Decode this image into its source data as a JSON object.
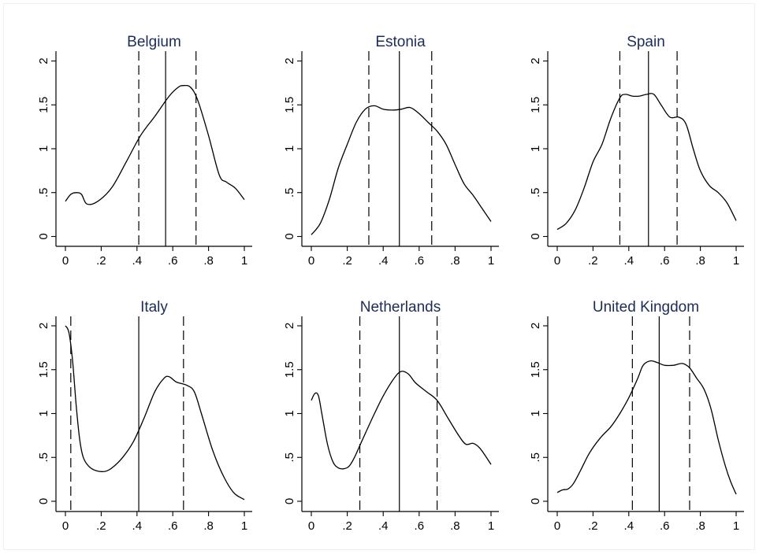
{
  "chart_data": [
    {
      "type": "line",
      "title": "Belgium",
      "xlim": [
        0,
        1
      ],
      "ylim": [
        0,
        2
      ],
      "x_ticks": [
        "0",
        ".2",
        ".4",
        ".6",
        ".8",
        "1"
      ],
      "y_ticks": [
        "0",
        ".5",
        "1",
        "1.5",
        "2"
      ],
      "grid": false,
      "series": [
        {
          "x": [
            0,
            0.03,
            0.06,
            0.09,
            0.12,
            0.18,
            0.26,
            0.34,
            0.42,
            0.5,
            0.58,
            0.63,
            0.66,
            0.7,
            0.74,
            0.8,
            0.86,
            0.9,
            0.95,
            1.0
          ],
          "y": [
            0.4,
            0.48,
            0.5,
            0.48,
            0.37,
            0.4,
            0.56,
            0.85,
            1.15,
            1.37,
            1.6,
            1.7,
            1.72,
            1.7,
            1.55,
            1.15,
            0.7,
            0.62,
            0.55,
            0.42
          ]
        }
      ],
      "vlines": [
        {
          "x": 0.41,
          "style": "dashed"
        },
        {
          "x": 0.56,
          "style": "solid"
        },
        {
          "x": 0.73,
          "style": "dashed"
        }
      ]
    },
    {
      "type": "line",
      "title": "Estonia",
      "xlim": [
        0,
        1
      ],
      "ylim": [
        0,
        2
      ],
      "x_ticks": [
        "0",
        ".2",
        ".4",
        ".6",
        ".8",
        "1"
      ],
      "y_ticks": [
        "0",
        ".5",
        "1",
        "1.5",
        "2"
      ],
      "grid": false,
      "series": [
        {
          "x": [
            0,
            0.05,
            0.1,
            0.15,
            0.2,
            0.25,
            0.3,
            0.35,
            0.4,
            0.45,
            0.5,
            0.55,
            0.6,
            0.65,
            0.7,
            0.75,
            0.8,
            0.85,
            0.9,
            0.95,
            1.0
          ],
          "y": [
            0.02,
            0.15,
            0.42,
            0.78,
            1.05,
            1.3,
            1.45,
            1.49,
            1.45,
            1.44,
            1.45,
            1.47,
            1.4,
            1.3,
            1.2,
            1.05,
            0.82,
            0.6,
            0.47,
            0.32,
            0.17
          ]
        }
      ],
      "vlines": [
        {
          "x": 0.32,
          "style": "dashed"
        },
        {
          "x": 0.49,
          "style": "solid"
        },
        {
          "x": 0.67,
          "style": "dashed"
        }
      ]
    },
    {
      "type": "line",
      "title": "Spain",
      "xlim": [
        0,
        1
      ],
      "ylim": [
        0,
        2
      ],
      "x_ticks": [
        "0",
        ".2",
        ".4",
        ".6",
        ".8",
        "1"
      ],
      "y_ticks": [
        "0",
        ".5",
        "1",
        "1.5",
        "2"
      ],
      "grid": false,
      "series": [
        {
          "x": [
            0,
            0.05,
            0.1,
            0.15,
            0.2,
            0.25,
            0.3,
            0.35,
            0.38,
            0.42,
            0.46,
            0.5,
            0.54,
            0.58,
            0.63,
            0.68,
            0.72,
            0.76,
            0.8,
            0.85,
            0.9,
            0.95,
            1.0
          ],
          "y": [
            0.08,
            0.15,
            0.3,
            0.55,
            0.85,
            1.05,
            1.35,
            1.58,
            1.62,
            1.6,
            1.6,
            1.62,
            1.62,
            1.5,
            1.36,
            1.36,
            1.28,
            1.0,
            0.75,
            0.58,
            0.5,
            0.38,
            0.18
          ]
        }
      ],
      "vlines": [
        {
          "x": 0.35,
          "style": "dashed"
        },
        {
          "x": 0.51,
          "style": "solid"
        },
        {
          "x": 0.67,
          "style": "dashed"
        }
      ]
    },
    {
      "type": "line",
      "title": "Italy",
      "xlim": [
        0,
        1
      ],
      "ylim": [
        0,
        2
      ],
      "x_ticks": [
        "0",
        ".2",
        ".4",
        ".6",
        ".8",
        "1"
      ],
      "y_ticks": [
        "0",
        ".5",
        "1",
        "1.5",
        "2"
      ],
      "grid": false,
      "series": [
        {
          "x": [
            0,
            0.02,
            0.04,
            0.06,
            0.08,
            0.1,
            0.13,
            0.17,
            0.22,
            0.26,
            0.32,
            0.38,
            0.44,
            0.5,
            0.55,
            0.58,
            0.62,
            0.68,
            0.72,
            0.76,
            0.82,
            0.88,
            0.94,
            1.0
          ],
          "y": [
            2.0,
            1.92,
            1.6,
            1.1,
            0.7,
            0.5,
            0.4,
            0.35,
            0.34,
            0.38,
            0.5,
            0.68,
            0.95,
            1.25,
            1.4,
            1.42,
            1.36,
            1.32,
            1.25,
            1.0,
            0.6,
            0.3,
            0.1,
            0.02
          ]
        }
      ],
      "vlines": [
        {
          "x": 0.03,
          "style": "dashed"
        },
        {
          "x": 0.41,
          "style": "solid"
        },
        {
          "x": 0.66,
          "style": "dashed"
        }
      ]
    },
    {
      "type": "line",
      "title": "Netherlands",
      "xlim": [
        0,
        1
      ],
      "ylim": [
        0,
        2
      ],
      "x_ticks": [
        "0",
        ".2",
        ".4",
        ".6",
        ".8",
        "1"
      ],
      "y_ticks": [
        "0",
        ".5",
        "1",
        "1.5",
        "2"
      ],
      "grid": false,
      "series": [
        {
          "x": [
            0,
            0.02,
            0.04,
            0.06,
            0.09,
            0.12,
            0.15,
            0.18,
            0.21,
            0.24,
            0.28,
            0.34,
            0.4,
            0.46,
            0.5,
            0.54,
            0.58,
            0.64,
            0.7,
            0.76,
            0.82,
            0.86,
            0.9,
            0.94,
            1.0
          ],
          "y": [
            1.15,
            1.23,
            1.2,
            0.98,
            0.65,
            0.45,
            0.38,
            0.37,
            0.4,
            0.5,
            0.68,
            0.95,
            1.2,
            1.4,
            1.48,
            1.45,
            1.35,
            1.25,
            1.15,
            0.95,
            0.75,
            0.65,
            0.66,
            0.6,
            0.42
          ]
        }
      ],
      "vlines": [
        {
          "x": 0.27,
          "style": "dashed"
        },
        {
          "x": 0.49,
          "style": "solid"
        },
        {
          "x": 0.7,
          "style": "dashed"
        }
      ]
    },
    {
      "type": "line",
      "title": "United Kingdom",
      "xlim": [
        0,
        1
      ],
      "ylim": [
        0,
        2
      ],
      "x_ticks": [
        "0",
        ".2",
        ".4",
        ".6",
        ".8",
        "1"
      ],
      "y_ticks": [
        "0",
        ".5",
        "1",
        "1.5",
        "2"
      ],
      "grid": false,
      "series": [
        {
          "x": [
            0,
            0.03,
            0.06,
            0.09,
            0.13,
            0.18,
            0.24,
            0.3,
            0.35,
            0.4,
            0.45,
            0.48,
            0.52,
            0.56,
            0.6,
            0.65,
            0.7,
            0.74,
            0.78,
            0.82,
            0.86,
            0.9,
            0.94,
            0.97,
            1.0
          ],
          "y": [
            0.1,
            0.13,
            0.14,
            0.2,
            0.35,
            0.55,
            0.72,
            0.85,
            1.0,
            1.18,
            1.4,
            1.55,
            1.6,
            1.58,
            1.55,
            1.55,
            1.57,
            1.52,
            1.4,
            1.28,
            1.05,
            0.7,
            0.4,
            0.22,
            0.08
          ]
        }
      ],
      "vlines": [
        {
          "x": 0.42,
          "style": "dashed"
        },
        {
          "x": 0.57,
          "style": "solid"
        },
        {
          "x": 0.74,
          "style": "dashed"
        }
      ]
    }
  ]
}
